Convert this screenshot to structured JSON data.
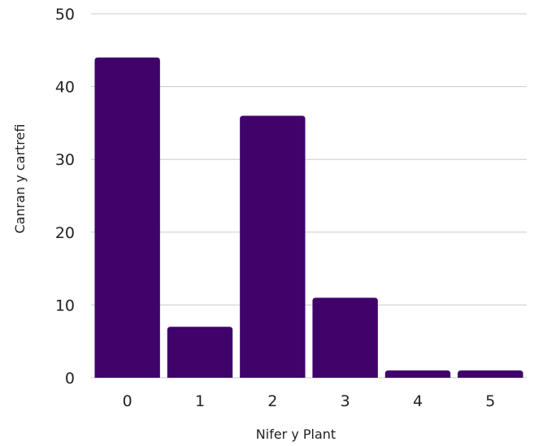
{
  "chart_data": {
    "type": "bar",
    "categories": [
      "0",
      "1",
      "2",
      "3",
      "4",
      "5"
    ],
    "values": [
      44,
      7,
      36,
      11,
      1,
      1
    ],
    "xlabel": "Nifer y Plant",
    "ylabel": "Canran y cartrefi",
    "ylim": [
      0,
      50
    ],
    "yticks": [
      "0",
      "10",
      "20",
      "30",
      "40",
      "50"
    ],
    "grid": true,
    "bar_color": "#40036a",
    "grid_color": "#cccccc"
  }
}
